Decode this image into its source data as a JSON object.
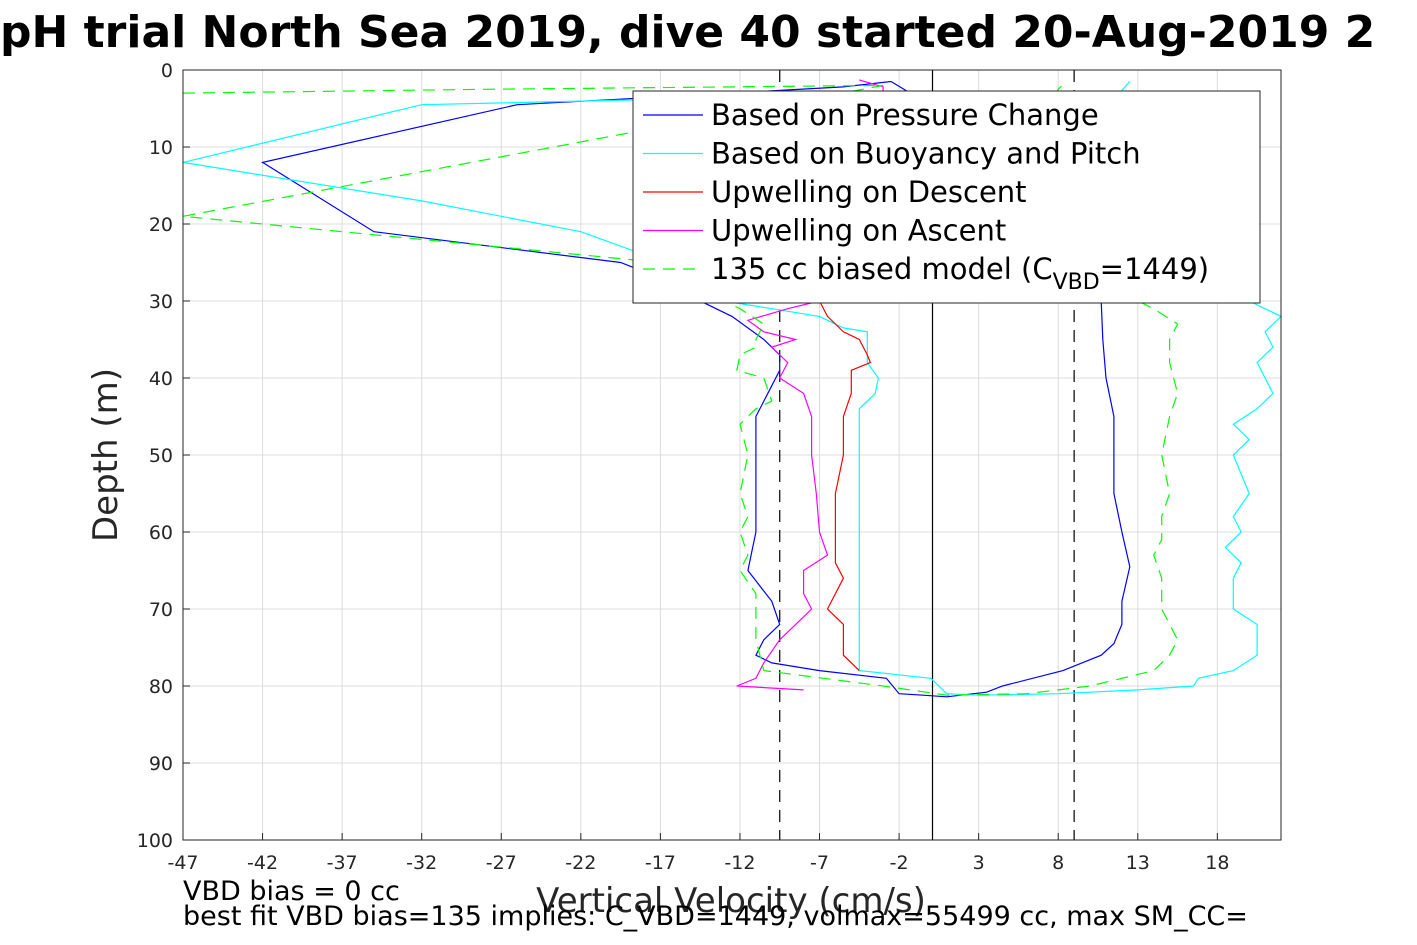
{
  "chart_data": {
    "type": "line",
    "title": "pH trial North Sea 2019, dive 40 started 20-Aug-2019 2",
    "xlabel": "Vertical Velocity (cm/s)",
    "ylabel": "Depth (m)",
    "xlim": [
      -47,
      22
    ],
    "ylim": [
      0,
      100
    ],
    "y_reversed": true,
    "xticks": [
      -47,
      -42,
      -37,
      -32,
      -27,
      -22,
      -17,
      -12,
      -7,
      -2,
      3,
      8,
      13,
      18
    ],
    "yticks": [
      0,
      10,
      20,
      30,
      40,
      50,
      60,
      70,
      80,
      90,
      100
    ],
    "grid": true,
    "legend_position": "top-right",
    "series": [
      {
        "name": "Based on Pressure Change",
        "color": "#0000ff",
        "dash": "solid",
        "points": [
          [
            -2.5,
            1.5
          ],
          [
            -5.5,
            2.2
          ],
          [
            -17,
            3.5
          ],
          [
            -26,
            4.5
          ],
          [
            -42,
            12
          ],
          [
            -35,
            21
          ],
          [
            -19.5,
            25
          ],
          [
            -17,
            27
          ],
          [
            -15,
            29.5
          ],
          [
            -12.5,
            32
          ],
          [
            -10.5,
            35
          ],
          [
            -9.5,
            37
          ],
          [
            -9.5,
            39
          ],
          [
            -10,
            41
          ],
          [
            -11,
            45
          ],
          [
            -11,
            50
          ],
          [
            -11,
            55
          ],
          [
            -11,
            60
          ],
          [
            -11.5,
            65
          ],
          [
            -10,
            69
          ],
          [
            -9.5,
            72
          ],
          [
            -10.5,
            74
          ],
          [
            -11,
            76
          ],
          [
            -10,
            77
          ],
          [
            -7,
            78
          ],
          [
            -2.8,
            79
          ],
          [
            -2,
            81
          ],
          [
            -0.5,
            81.2
          ],
          [
            1,
            81.4
          ],
          [
            3.5,
            80.8
          ],
          [
            4.5,
            80
          ],
          [
            8.3,
            78
          ],
          [
            10.7,
            76
          ],
          [
            11.5,
            74.5
          ],
          [
            12,
            72
          ],
          [
            12,
            69
          ],
          [
            12.5,
            64.5
          ],
          [
            12,
            60
          ],
          [
            11.5,
            55
          ],
          [
            11.5,
            50
          ],
          [
            11.5,
            45
          ],
          [
            11,
            40
          ],
          [
            10.8,
            35
          ],
          [
            10.7,
            30
          ],
          [
            9.5,
            28
          ],
          [
            8,
            26
          ],
          [
            5,
            22
          ],
          [
            3,
            18
          ],
          [
            2,
            14
          ],
          [
            1,
            10
          ],
          [
            0.3,
            6
          ],
          [
            -0.5,
            4
          ],
          [
            -2.5,
            1.5
          ]
        ]
      },
      {
        "name": "Based on Buoyancy and Pitch",
        "color": "#00ffff",
        "dash": "solid",
        "points": [
          [
            -17,
            3.8
          ],
          [
            -32,
            4.5
          ],
          [
            -47,
            12
          ],
          [
            -32,
            17
          ],
          [
            -22,
            21
          ],
          [
            -18,
            24
          ],
          [
            -16,
            27
          ],
          [
            -13,
            30
          ],
          [
            -10,
            31
          ],
          [
            -7,
            32
          ],
          [
            -5.5,
            33.5
          ],
          [
            -4,
            34
          ],
          [
            -4,
            38
          ],
          [
            -3.3,
            40
          ],
          [
            -3.5,
            42
          ],
          [
            -4.5,
            44
          ],
          [
            -4.5,
            50
          ],
          [
            -4.5,
            60
          ],
          [
            -4.5,
            70
          ],
          [
            -4.5,
            78
          ],
          [
            0,
            79
          ],
          [
            1,
            81
          ],
          [
            3,
            81.2
          ],
          [
            8,
            81
          ],
          [
            13,
            80.5
          ],
          [
            16.5,
            80
          ],
          [
            16.8,
            79
          ],
          [
            19,
            78
          ],
          [
            20.5,
            76
          ],
          [
            20.5,
            72
          ],
          [
            19,
            70
          ],
          [
            19,
            66
          ],
          [
            19.5,
            64
          ],
          [
            18.5,
            62
          ],
          [
            19.5,
            60
          ],
          [
            19,
            58
          ],
          [
            20,
            55
          ],
          [
            19,
            50
          ],
          [
            20,
            48
          ],
          [
            19,
            46
          ],
          [
            20.5,
            44
          ],
          [
            21.5,
            42
          ],
          [
            21,
            40
          ],
          [
            20.5,
            38
          ],
          [
            21.5,
            36
          ],
          [
            21,
            34
          ],
          [
            22,
            32
          ],
          [
            20,
            30
          ],
          [
            18,
            27
          ],
          [
            16,
            24
          ],
          [
            14,
            20
          ],
          [
            13,
            15
          ],
          [
            12,
            10
          ],
          [
            11,
            5
          ],
          [
            12.5,
            1.5
          ]
        ]
      },
      {
        "name": "Upwelling on Descent",
        "color": "#ff0000",
        "dash": "solid",
        "points": [
          [
            -7,
            30
          ],
          [
            -6.5,
            32
          ],
          [
            -5.5,
            34
          ],
          [
            -4.5,
            35
          ],
          [
            -4,
            37
          ],
          [
            -3.8,
            38
          ],
          [
            -5,
            39
          ],
          [
            -5,
            42
          ],
          [
            -5.5,
            45
          ],
          [
            -5.5,
            50
          ],
          [
            -6,
            55
          ],
          [
            -6,
            60
          ],
          [
            -6,
            64
          ],
          [
            -5.5,
            66
          ],
          [
            -6.5,
            70
          ],
          [
            -5.5,
            72
          ],
          [
            -5.5,
            76
          ],
          [
            -4.5,
            78
          ]
        ]
      },
      {
        "name": "Upwelling on Ascent",
        "color": "#ff00ff",
        "dash": "solid",
        "points": [
          [
            -4.5,
            1.3
          ],
          [
            -3,
            2.2
          ],
          [
            -3.5,
            25
          ],
          [
            -5,
            28
          ],
          [
            -7,
            30
          ],
          [
            -9,
            31
          ],
          [
            -11.5,
            32.5
          ],
          [
            -10.5,
            34
          ],
          [
            -8.5,
            35
          ],
          [
            -10,
            36
          ],
          [
            -9,
            38
          ],
          [
            -9.5,
            40
          ],
          [
            -8,
            42
          ],
          [
            -7.5,
            45
          ],
          [
            -7.5,
            50
          ],
          [
            -7.2,
            55
          ],
          [
            -7,
            60
          ],
          [
            -6.5,
            63
          ],
          [
            -8,
            65
          ],
          [
            -8,
            68
          ],
          [
            -7.5,
            70
          ],
          [
            -8.5,
            72
          ],
          [
            -9.5,
            74
          ],
          [
            -10.5,
            77
          ],
          [
            -11,
            79
          ],
          [
            -12.2,
            80
          ],
          [
            -8,
            80.5
          ]
        ]
      },
      {
        "name": "135 cc biased model (C_VBD=1449)",
        "color": "#00ff00",
        "dash": "dashed",
        "points": [
          [
            -47,
            3
          ],
          [
            -28,
            2.5
          ],
          [
            -3,
            2
          ],
          [
            -47,
            19
          ],
          [
            -17,
            25
          ],
          [
            -16,
            27
          ],
          [
            -14,
            29
          ],
          [
            -12,
            31
          ],
          [
            -10.5,
            33
          ],
          [
            -11,
            35
          ],
          [
            -11,
            36
          ],
          [
            -12,
            37
          ],
          [
            -12.2,
            39
          ],
          [
            -10.5,
            40
          ],
          [
            -10,
            43
          ],
          [
            -11,
            44
          ],
          [
            -12,
            46
          ],
          [
            -11.5,
            50
          ],
          [
            -12,
            55
          ],
          [
            -11.5,
            58
          ],
          [
            -12,
            60
          ],
          [
            -11.5,
            63
          ],
          [
            -12,
            65
          ],
          [
            -11,
            68
          ],
          [
            -11,
            70
          ],
          [
            -11,
            74
          ],
          [
            -10.5,
            78
          ],
          [
            -3,
            80
          ],
          [
            1,
            81.2
          ],
          [
            6,
            81
          ],
          [
            10,
            80
          ],
          [
            14,
            78
          ],
          [
            15,
            76
          ],
          [
            15.5,
            74
          ],
          [
            15,
            72
          ],
          [
            14.5,
            70
          ],
          [
            14.5,
            66
          ],
          [
            14,
            63
          ],
          [
            14.5,
            61
          ],
          [
            14.5,
            58
          ],
          [
            15,
            55
          ],
          [
            14.5,
            50
          ],
          [
            15,
            45
          ],
          [
            15.5,
            42
          ],
          [
            15,
            38
          ],
          [
            15,
            35
          ],
          [
            15.5,
            33
          ],
          [
            14,
            31
          ],
          [
            12,
            29
          ],
          [
            10,
            26
          ],
          [
            8.5,
            22
          ],
          [
            7.5,
            18
          ],
          [
            7,
            14
          ],
          [
            7,
            10
          ],
          [
            7.5,
            6
          ],
          [
            8,
            2.5
          ],
          [
            8.5,
            1.5
          ]
        ]
      }
    ],
    "reference_lines": [
      {
        "axis": "x",
        "value": 0.1,
        "color": "#000000",
        "dash": "solid"
      },
      {
        "axis": "x",
        "value": -9.5,
        "color": "#000000",
        "dash": "dashed"
      },
      {
        "axis": "x",
        "value": 9,
        "color": "#000000",
        "dash": "dashed"
      }
    ]
  },
  "notes": {
    "line1": "VBD bias = 0 cc",
    "line2": "best fit VBD bias=135 implies: C_VBD=1449, volmax=55499 cc, max SM_CC="
  }
}
